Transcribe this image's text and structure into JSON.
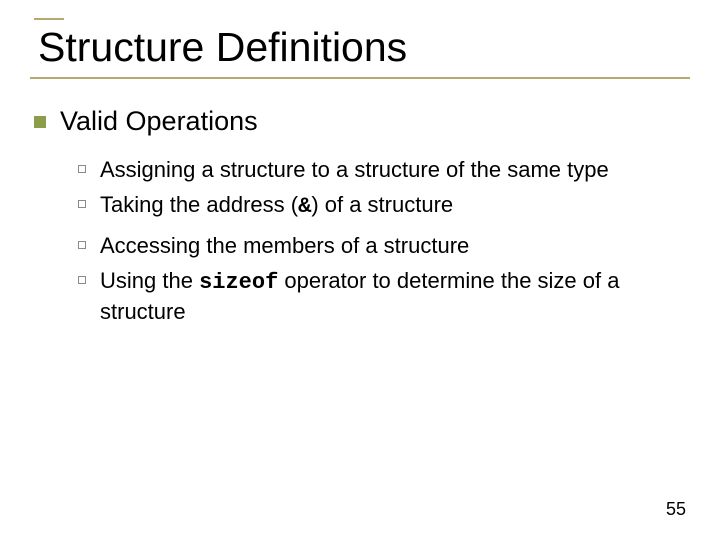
{
  "title": "Structure Definitions",
  "section": {
    "heading": "Valid Operations",
    "items": [
      {
        "pre": "Assigning a structure to a structure of the same type",
        "code": "",
        "post": ""
      },
      {
        "pre": "Taking the address (",
        "code": "&",
        "post": ") of a structure"
      },
      {
        "pre": "Accessing the members of a structure",
        "code": "",
        "post": ""
      },
      {
        "pre": "Using the ",
        "code": "sizeof",
        "post": " operator to determine the size of a structure"
      }
    ]
  },
  "page_number": "55",
  "colors": {
    "rule": "#b8a870",
    "bullet_lvl1": "#8c9e4a",
    "bullet_lvl2_border": "#8a8a8a",
    "text": "#000000",
    "background": "#ffffff"
  },
  "typography": {
    "title_fontsize": 41,
    "lvl1_fontsize": 27,
    "lvl2_fontsize": 22,
    "pagenum_fontsize": 18,
    "code_font": "Courier New"
  }
}
